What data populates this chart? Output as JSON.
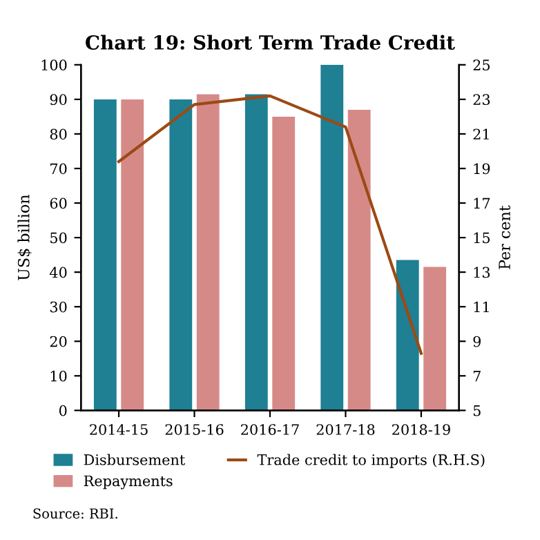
{
  "chart_data": {
    "type": "bar",
    "title": "Chart 19: Short Term Trade Credit",
    "ylabel": "US$ billion",
    "y2label": "Per cent",
    "categories": [
      "2014-15",
      "2015-16",
      "2016-17",
      "2017-18",
      "2018-19"
    ],
    "series": [
      {
        "name": "Disbursement",
        "color": "#1f7f93",
        "values": [
          90,
          90,
          91.5,
          100,
          43.5
        ]
      },
      {
        "name": "Repayments",
        "color": "#d68a88",
        "values": [
          90,
          91.5,
          85,
          87,
          41.5
        ]
      },
      {
        "name": "Trade credit to imports (R.H.S)",
        "type": "line",
        "axis": "y2",
        "color": "#9c4a14",
        "values": [
          19.4,
          22.7,
          23.2,
          21.4,
          8.3
        ]
      }
    ],
    "ylim": [
      0,
      100
    ],
    "yticks": [
      0,
      10,
      20,
      30,
      40,
      50,
      60,
      70,
      80,
      90,
      100
    ],
    "y2lim": [
      5,
      25
    ],
    "y2ticks": [
      5,
      7,
      9,
      11,
      13,
      15,
      17,
      19,
      21,
      23,
      25
    ],
    "legend": "bottom",
    "grid": false,
    "annotations": [
      "Source: RBI."
    ]
  }
}
